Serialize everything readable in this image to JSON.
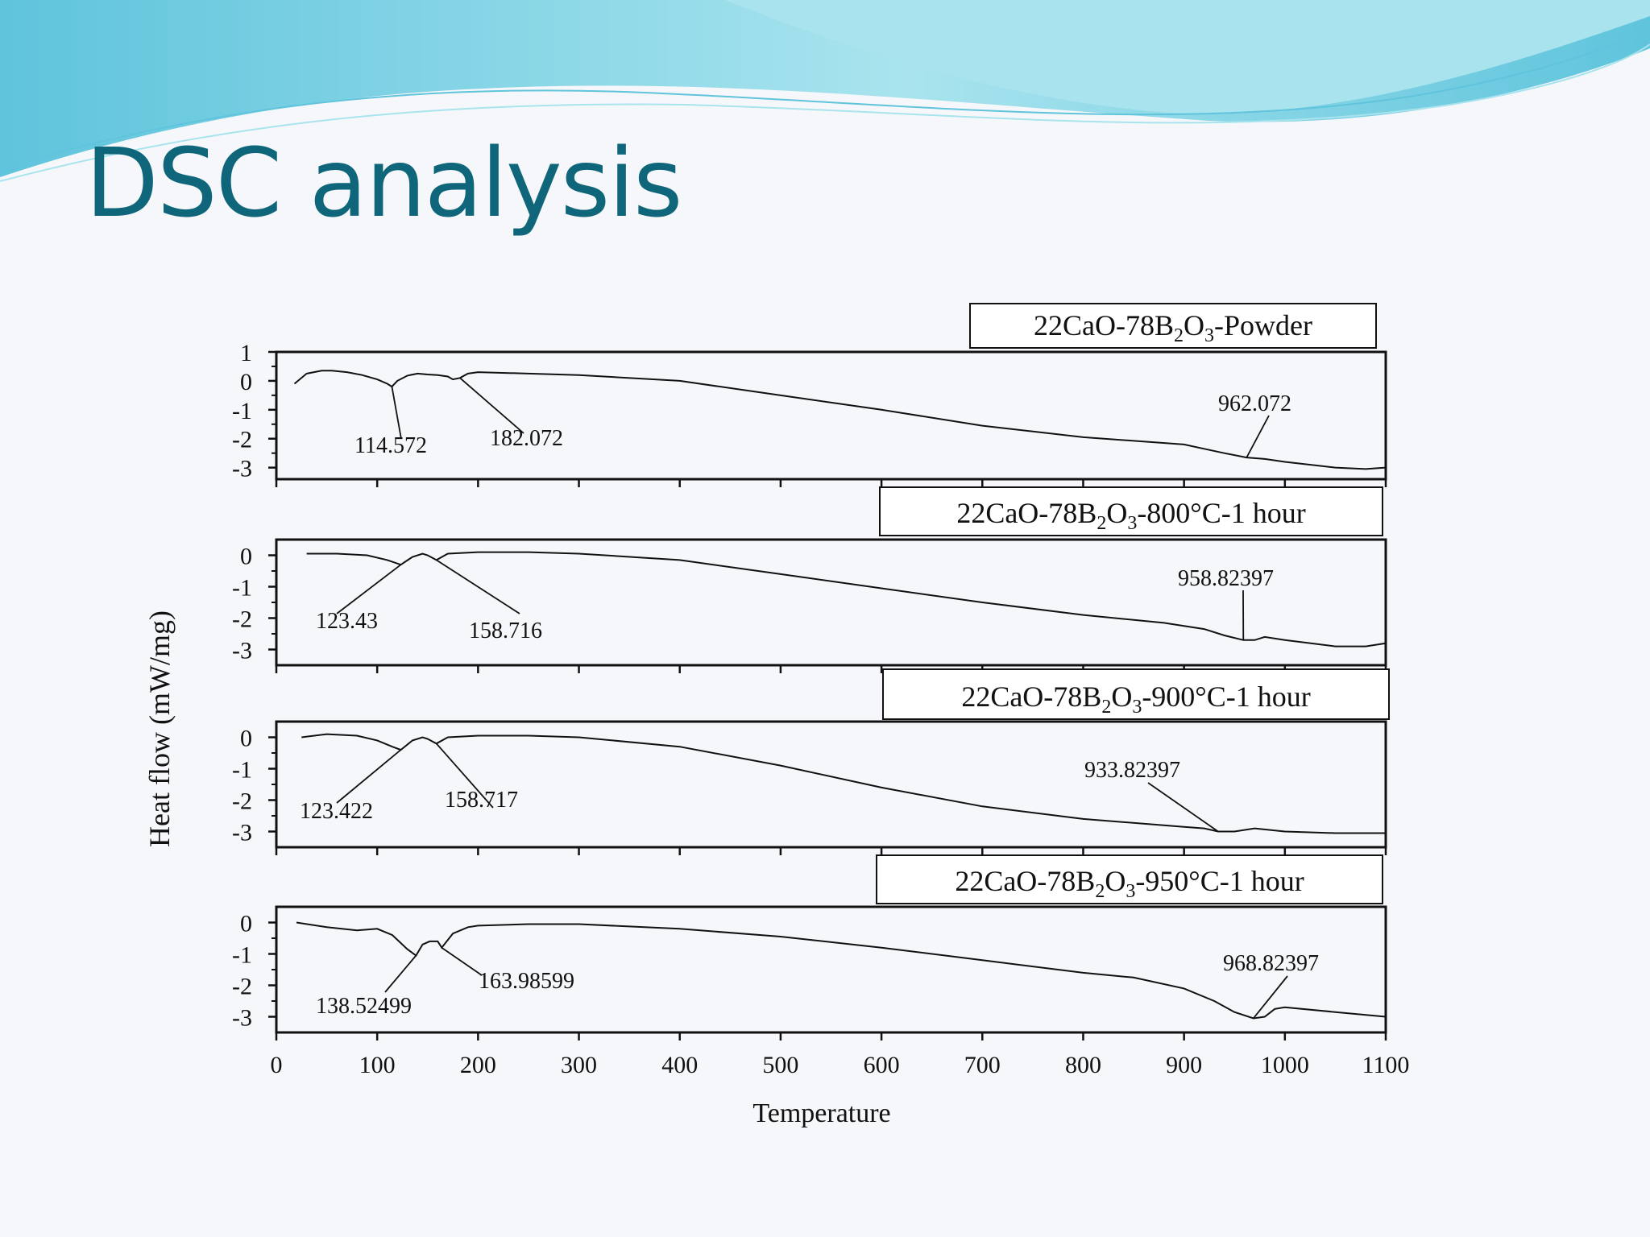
{
  "slide": {
    "title": "DSC analysis",
    "colors": {
      "title": "#0f667a",
      "wave_primary": "#5fc4dc",
      "wave_light": "#a9e4ee",
      "background": "#f6f7fa"
    }
  },
  "chart_data": {
    "type": "line",
    "xlabel": "Temperature",
    "ylabel": "Heat flow (mW/mg)",
    "xlim": [
      0,
      1100
    ],
    "x_ticks": [
      0,
      100,
      200,
      300,
      400,
      500,
      600,
      700,
      800,
      900,
      1000,
      1100
    ],
    "grid": false,
    "panels": [
      {
        "label": {
          "pre": "22CaO-78B",
          "sub1": "2",
          "mid": "O",
          "sub2": "3",
          "post": "-Powder"
        },
        "ylim": [
          -3.4,
          1.0
        ],
        "y_ticks": [
          1,
          0,
          -1,
          -2,
          -3
        ],
        "series": {
          "x": [
            18,
            30,
            45,
            55,
            70,
            85,
            100,
            110,
            114.572,
            120,
            130,
            140,
            150,
            160,
            170,
            175,
            182.072,
            190,
            200,
            250,
            300,
            400,
            500,
            600,
            700,
            800,
            900,
            920,
            940,
            962.072,
            980,
            1000,
            1050,
            1080,
            1100
          ],
          "y": [
            -0.1,
            0.25,
            0.35,
            0.35,
            0.3,
            0.2,
            0.05,
            -0.1,
            -0.2,
            0.0,
            0.18,
            0.25,
            0.22,
            0.2,
            0.15,
            0.05,
            0.1,
            0.25,
            0.3,
            0.25,
            0.2,
            0.0,
            -0.5,
            -1.0,
            -1.55,
            -1.95,
            -2.2,
            -2.35,
            -2.5,
            -2.65,
            -2.7,
            -2.8,
            -3.0,
            -3.05,
            -3.0
          ]
        },
        "annotations": [
          {
            "text": "114.572",
            "x": 114.572,
            "y": -0.2
          },
          {
            "text": "182.072",
            "x": 182.072,
            "y": 0.1
          },
          {
            "text": "962.072",
            "x": 962.072,
            "y": -2.65
          }
        ]
      },
      {
        "label": {
          "pre": "22CaO-78B",
          "sub1": "2",
          "mid": "O",
          "sub2": "3",
          "post": "-800°C-1 hour"
        },
        "ylim": [
          -3.5,
          0.5
        ],
        "y_ticks": [
          0,
          -1,
          -2,
          -3
        ],
        "series": {
          "x": [
            30,
            60,
            90,
            110,
            123.43,
            135,
            145,
            150,
            158.716,
            170,
            200,
            250,
            300,
            400,
            500,
            600,
            700,
            800,
            880,
            900,
            920,
            940,
            958.82397,
            970,
            980,
            1000,
            1050,
            1080,
            1100
          ],
          "y": [
            0.05,
            0.05,
            0.0,
            -0.15,
            -0.3,
            -0.05,
            0.05,
            0.0,
            -0.15,
            0.05,
            0.1,
            0.1,
            0.05,
            -0.15,
            -0.6,
            -1.05,
            -1.5,
            -1.9,
            -2.15,
            -2.25,
            -2.35,
            -2.55,
            -2.7,
            -2.7,
            -2.6,
            -2.7,
            -2.9,
            -2.9,
            -2.8
          ]
        },
        "annotations": [
          {
            "text": "123.43",
            "x": 123.43,
            "y": -0.3
          },
          {
            "text": "158.716",
            "x": 158.716,
            "y": -0.15
          },
          {
            "text": "958.82397",
            "x": 958.82397,
            "y": -2.7
          }
        ]
      },
      {
        "label": {
          "pre": "22CaO-78B",
          "sub1": "2",
          "mid": "O",
          "sub2": "3",
          "post": "-900°C-1 hour"
        },
        "ylim": [
          -3.5,
          0.5
        ],
        "y_ticks": [
          0,
          -1,
          -2,
          -3
        ],
        "series": {
          "x": [
            25,
            50,
            80,
            100,
            115,
            123.422,
            135,
            145,
            150,
            158.717,
            170,
            200,
            250,
            300,
            400,
            500,
            600,
            700,
            800,
            900,
            920,
            933.82397,
            950,
            970,
            1000,
            1050,
            1100
          ],
          "y": [
            0.0,
            0.1,
            0.05,
            -0.1,
            -0.3,
            -0.4,
            -0.1,
            0.0,
            -0.05,
            -0.2,
            0.0,
            0.05,
            0.05,
            0.0,
            -0.3,
            -0.9,
            -1.6,
            -2.2,
            -2.6,
            -2.85,
            -2.9,
            -3.0,
            -3.0,
            -2.9,
            -3.0,
            -3.05,
            -3.05
          ]
        },
        "annotations": [
          {
            "text": "123.422",
            "x": 123.422,
            "y": -0.4
          },
          {
            "text": "158.717",
            "x": 158.717,
            "y": -0.2
          },
          {
            "text": "933.82397",
            "x": 933.82397,
            "y": -3.0
          }
        ]
      },
      {
        "label": {
          "pre": "22CaO-78B",
          "sub1": "2",
          "mid": "O",
          "sub2": "3",
          "post": "-950°C-1 hour"
        },
        "ylim": [
          -3.5,
          0.5
        ],
        "y_ticks": [
          0,
          -1,
          -2,
          -3
        ],
        "series": {
          "x": [
            20,
            50,
            80,
            100,
            115,
            130,
            138.52499,
            145,
            152,
            160,
            163.98599,
            175,
            190,
            200,
            250,
            300,
            400,
            500,
            600,
            700,
            800,
            850,
            900,
            930,
            950,
            968.82397,
            980,
            990,
            1000,
            1050,
            1100
          ],
          "y": [
            0.0,
            -0.15,
            -0.25,
            -0.2,
            -0.4,
            -0.85,
            -1.05,
            -0.7,
            -0.6,
            -0.6,
            -0.8,
            -0.35,
            -0.15,
            -0.1,
            -0.05,
            -0.05,
            -0.2,
            -0.45,
            -0.8,
            -1.2,
            -1.6,
            -1.75,
            -2.1,
            -2.5,
            -2.85,
            -3.05,
            -3.0,
            -2.75,
            -2.7,
            -2.85,
            -3.0
          ]
        },
        "annotations": [
          {
            "text": "138.52499",
            "x": 138.52499,
            "y": -1.05
          },
          {
            "text": "163.98599",
            "x": 163.98599,
            "y": -0.8
          },
          {
            "text": "968.82397",
            "x": 968.82397,
            "y": -3.05
          }
        ]
      }
    ]
  }
}
